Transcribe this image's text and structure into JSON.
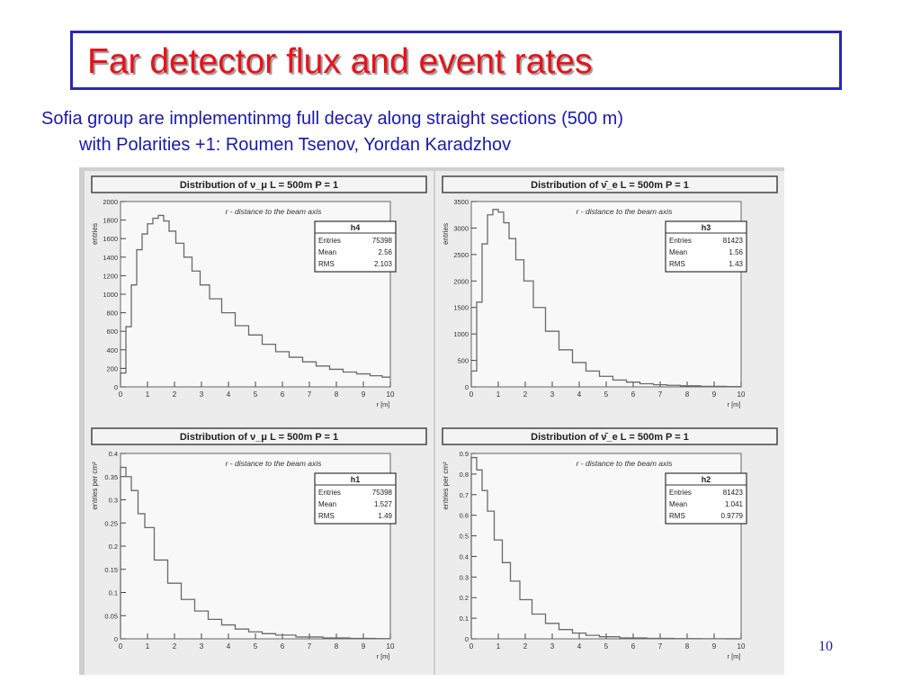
{
  "slide": {
    "title": "Far detector flux and event rates",
    "subtitle_line1": "Sofia group are implementinmg full decay along straight sections (500 m)",
    "subtitle_line2": "with Polarities +1: Roumen Tsenov, Yordan Karadzhov",
    "page_number": "10"
  },
  "colors": {
    "title": "#e8121a",
    "text": "#1a1aa8",
    "border": "#2a2ab0",
    "hist_line": "#6a6a6a"
  },
  "chart_data": [
    {
      "id": "h4",
      "type": "line",
      "title": "Distribution of ν_μ  L = 500m  P = 1",
      "annotation": "r - distance to the beam axis",
      "xlabel": "r [m]",
      "ylabel": "entries",
      "xlim": [
        0,
        10
      ],
      "ylim": [
        0,
        2000
      ],
      "xticks": [
        0,
        1,
        2,
        3,
        4,
        5,
        6,
        7,
        8,
        9,
        10
      ],
      "yticks": [
        0,
        200,
        400,
        600,
        800,
        1000,
        1200,
        1400,
        1600,
        1800,
        2000
      ],
      "stats": {
        "name": "h4",
        "rows": [
          [
            "Entries",
            "75398"
          ],
          [
            "Mean",
            "2.56"
          ],
          [
            "RMS",
            "2.103"
          ]
        ]
      },
      "x": [
        0.1,
        0.3,
        0.5,
        0.7,
        0.9,
        1.1,
        1.3,
        1.5,
        1.7,
        1.9,
        2.2,
        2.5,
        2.8,
        3.1,
        3.5,
        4.0,
        4.5,
        5.0,
        5.5,
        6.0,
        6.5,
        7.0,
        7.5,
        8.0,
        8.5,
        9.0,
        9.5,
        9.9
      ],
      "values": [
        150,
        650,
        1100,
        1480,
        1650,
        1760,
        1820,
        1850,
        1790,
        1680,
        1550,
        1400,
        1250,
        1100,
        950,
        800,
        660,
        560,
        460,
        380,
        320,
        270,
        225,
        190,
        160,
        140,
        120,
        105
      ]
    },
    {
      "id": "h3",
      "type": "line",
      "title": "Distribution of ν̄_e  L = 500m  P = 1",
      "annotation": "r - distance to the beam axis",
      "xlabel": "r [m]",
      "ylabel": "entries",
      "xlim": [
        0,
        10
      ],
      "ylim": [
        0,
        3500
      ],
      "xticks": [
        0,
        1,
        2,
        3,
        4,
        5,
        6,
        7,
        8,
        9,
        10
      ],
      "yticks": [
        0,
        500,
        1000,
        1500,
        2000,
        2500,
        3000,
        3500
      ],
      "stats": {
        "name": "h3",
        "rows": [
          [
            "Entries",
            "81423"
          ],
          [
            "Mean",
            "1.56"
          ],
          [
            "RMS",
            "1.43"
          ]
        ]
      },
      "x": [
        0.1,
        0.3,
        0.5,
        0.7,
        0.9,
        1.1,
        1.3,
        1.5,
        1.8,
        2.1,
        2.5,
        3.0,
        3.5,
        4.0,
        4.5,
        5.0,
        5.5,
        6.0,
        6.5,
        7.0,
        7.5,
        8.0,
        9.0,
        9.9
      ],
      "values": [
        300,
        1600,
        2700,
        3250,
        3350,
        3300,
        3100,
        2800,
        2400,
        2000,
        1500,
        1050,
        700,
        460,
        300,
        200,
        130,
        90,
        60,
        40,
        30,
        20,
        10,
        5
      ]
    },
    {
      "id": "h1",
      "type": "line",
      "title": "Distribution of ν_μ  L = 500m  P = 1",
      "annotation": "r - distance to the beam axis",
      "xlabel": "r [m]",
      "ylabel": "entries per cm²",
      "xlim": [
        0,
        10
      ],
      "ylim": [
        0,
        0.4
      ],
      "xticks": [
        0,
        1,
        2,
        3,
        4,
        5,
        6,
        7,
        8,
        9,
        10
      ],
      "yticks": [
        0,
        0.05,
        0.1,
        0.15,
        0.2,
        0.25,
        0.3,
        0.35,
        0.4
      ],
      "stats": {
        "name": "h1",
        "rows": [
          [
            "Entries",
            "75398"
          ],
          [
            "Mean",
            "1.527"
          ],
          [
            "RMS",
            "1.49"
          ]
        ]
      },
      "x": [
        0.1,
        0.3,
        0.5,
        0.8,
        1.0,
        1.5,
        2.0,
        2.5,
        3.0,
        3.5,
        4.0,
        4.5,
        5.0,
        5.5,
        6.0,
        7.0,
        8.0,
        9.0,
        9.9
      ],
      "values": [
        0.37,
        0.35,
        0.32,
        0.27,
        0.24,
        0.17,
        0.12,
        0.085,
        0.06,
        0.042,
        0.03,
        0.021,
        0.015,
        0.011,
        0.008,
        0.004,
        0.002,
        0.001,
        0.0005
      ]
    },
    {
      "id": "h2",
      "type": "line",
      "title": "Distribution of ν̄_e  L = 500m  P = 1",
      "annotation": "r - distance to the beam axis",
      "xlabel": "r [m]",
      "ylabel": "entries per cm²",
      "xlim": [
        0,
        10
      ],
      "ylim": [
        0,
        0.9
      ],
      "xticks": [
        0,
        1,
        2,
        3,
        4,
        5,
        6,
        7,
        8,
        9,
        10
      ],
      "yticks": [
        0,
        0.1,
        0.2,
        0.3,
        0.4,
        0.5,
        0.6,
        0.7,
        0.8,
        0.9
      ],
      "stats": {
        "name": "h2",
        "rows": [
          [
            "Entries",
            "81423"
          ],
          [
            "Mean",
            "1.041"
          ],
          [
            "RMS",
            "0.9779"
          ]
        ]
      },
      "x": [
        0.1,
        0.3,
        0.5,
        0.7,
        1.0,
        1.3,
        1.6,
        2.0,
        2.5,
        3.0,
        3.5,
        4.0,
        4.5,
        5.0,
        6.0,
        7.0,
        8.0,
        9.0,
        9.9
      ],
      "values": [
        0.88,
        0.82,
        0.72,
        0.62,
        0.48,
        0.37,
        0.28,
        0.19,
        0.12,
        0.075,
        0.045,
        0.028,
        0.017,
        0.01,
        0.004,
        0.002,
        0.001,
        0.0005,
        0.0002
      ]
    }
  ]
}
